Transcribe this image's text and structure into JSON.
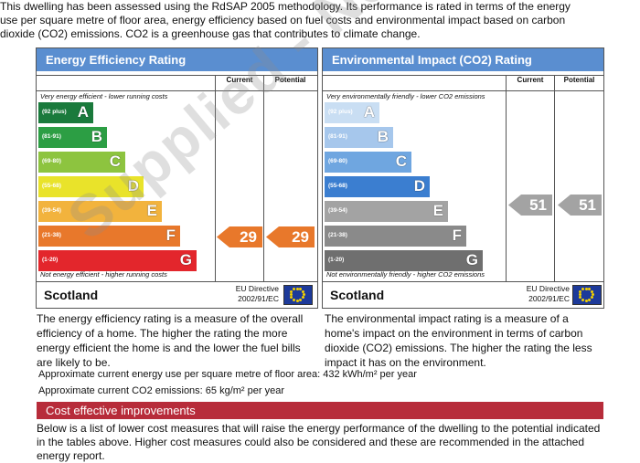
{
  "intro_text": "This dwelling has been assessed using the RdSAP 2005 methodology. Its performance is rated in terms of the energy use per square metre of floor area, energy efficiency based on fuel costs and environmental impact based on carbon dioxide (CO2) emissions. CO2 is a greenhouse gas that contributes to climate change.",
  "energy": {
    "title": "Energy Efficiency Rating",
    "col_current": "Current",
    "col_potential": "Potential",
    "top_note": "Very energy efficient - lower running costs",
    "bottom_note": "Not energy efficient - higher running costs",
    "bands": [
      {
        "range": "(92 plus)",
        "letter": "A",
        "color": "#1a7a3c"
      },
      {
        "range": "(81-91)",
        "letter": "B",
        "color": "#2c9e44"
      },
      {
        "range": "(69-80)",
        "letter": "C",
        "color": "#8dc43f"
      },
      {
        "range": "(55-68)",
        "letter": "D",
        "color": "#e9e32a"
      },
      {
        "range": "(39-54)",
        "letter": "E",
        "color": "#f2b33d"
      },
      {
        "range": "(21-38)",
        "letter": "F",
        "color": "#e8782b"
      },
      {
        "range": "(1-20)",
        "letter": "G",
        "color": "#e3262c"
      }
    ],
    "current": "29",
    "potential": "29",
    "rating_color": "#e8782b",
    "country": "Scotland",
    "eu_line1": "EU Directive",
    "eu_line2": "2002/91/EC",
    "header_color": "#5a8ed0"
  },
  "environment": {
    "title": "Environmental Impact (CO2) Rating",
    "col_current": "Current",
    "col_potential": "Potential",
    "top_note": "Very environmentally friendly - lower CO2 emissions",
    "bottom_note": "Not environmentally friendly - higher CO2 emissions",
    "bands": [
      {
        "range": "(92 plus)",
        "letter": "A",
        "color": "#c9def3"
      },
      {
        "range": "(81-91)",
        "letter": "B",
        "color": "#a6c7ec"
      },
      {
        "range": "(69-80)",
        "letter": "C",
        "color": "#6fa6e0"
      },
      {
        "range": "(55-68)",
        "letter": "D",
        "color": "#3b7ed0"
      },
      {
        "range": "(39-54)",
        "letter": "E",
        "color": "#a3a3a3"
      },
      {
        "range": "(21-38)",
        "letter": "F",
        "color": "#8a8a8a"
      },
      {
        "range": "(1-20)",
        "letter": "G",
        "color": "#6f6f6f"
      }
    ],
    "current": "51",
    "potential": "51",
    "rating_color": "#a3a3a3",
    "country": "Scotland",
    "eu_line1": "EU Directive",
    "eu_line2": "2002/91/EC",
    "header_color": "#5a8ed0"
  },
  "energy_desc": "The energy efficiency rating is a measure of the overall efficiency of a home. The higher the rating the more energy efficient the home is and the lower the fuel bills are likely to be.",
  "env_desc": "The environmental impact rating is a measure of a home's impact on the environment in terms of carbon dioxide (CO2) emissions. The higher the rating the less impact it has on the environment.",
  "energy_use_line": "Approximate current energy use per square metre of floor area: 432 kWh/m² per year",
  "co2_line": "Approximate current CO2 emissions: 65 kg/m² per year",
  "cost_title": "Cost effective improvements",
  "below_text": "Below is a list of lower cost measures that will raise the energy performance of the dwelling to the potential indicated in the tables above. Higher cost measures could also be considered and these are recommended in the attached energy report.",
  "watermark": "Supplied - Not Valid",
  "watermark_color": "#8c8c8c"
}
